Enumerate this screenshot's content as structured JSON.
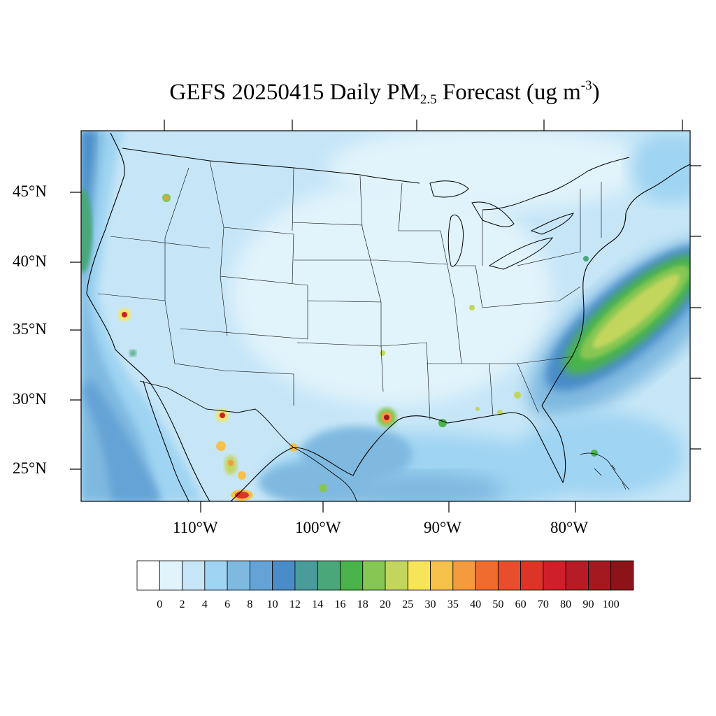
{
  "title": {
    "prefix": "GEFS 20250415 Daily PM",
    "subscript": "2.5",
    "middle": " Forecast (ug m",
    "superscript": "-3",
    "suffix": ")"
  },
  "map": {
    "projection": "Lambert conformal",
    "region": "Continental United States",
    "lat_labels": [
      "45°N",
      "40°N",
      "35°N",
      "30°N",
      "25°N"
    ],
    "lon_labels": [
      "110°W",
      "100°W",
      "90°W",
      "80°W"
    ],
    "background_field_color": "#c6e6f7",
    "hotspots": [
      {
        "place": "Southern California",
        "level": "80+"
      },
      {
        "place": "Houston, TX",
        "level": "90+"
      },
      {
        "place": "El Paso region",
        "level": "70+"
      },
      {
        "place": "Northern Mexico",
        "level": "90+"
      },
      {
        "place": "Atlantic offshore plume",
        "level": "20-25"
      }
    ]
  },
  "colorbar": {
    "labels": [
      "0",
      "2",
      "4",
      "6",
      "8",
      "10",
      "12",
      "14",
      "16",
      "18",
      "20",
      "25",
      "30",
      "35",
      "40",
      "50",
      "60",
      "70",
      "80",
      "90",
      "100"
    ],
    "colors": [
      "#ffffff",
      "#e1f3fb",
      "#c6e6f7",
      "#9fd4f2",
      "#7fb9e0",
      "#65a3d6",
      "#4a8cc8",
      "#4a9c9b",
      "#4aa77a",
      "#4ab34b",
      "#86c652",
      "#c2d65d",
      "#f6e657",
      "#f6c14a",
      "#f59a3d",
      "#f06b2e",
      "#e84d2d",
      "#dc3528",
      "#cf1f2b",
      "#b71c26",
      "#a3191f",
      "#8c1419"
    ]
  }
}
